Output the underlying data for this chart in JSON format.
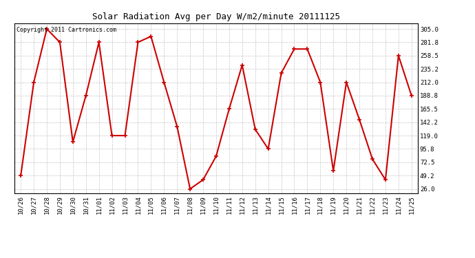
{
  "title": "Solar Radiation Avg per Day W/m2/minute 20111125",
  "copyright": "Copyright 2011 Cartronics.com",
  "x_labels": [
    "10/26",
    "10/27",
    "10/28",
    "10/29",
    "10/30",
    "10/31",
    "11/01",
    "11/02",
    "11/03",
    "11/04",
    "11/05",
    "11/06",
    "11/07",
    "11/08",
    "11/09",
    "11/10",
    "11/11",
    "11/12",
    "11/13",
    "11/14",
    "11/15",
    "11/16",
    "11/17",
    "11/18",
    "11/19",
    "11/20",
    "11/21",
    "11/22",
    "11/23",
    "11/24",
    "11/25"
  ],
  "y_values": [
    49.2,
    212.0,
    305.0,
    281.8,
    108.0,
    188.8,
    281.8,
    119.0,
    119.0,
    281.8,
    292.0,
    212.0,
    135.0,
    26.0,
    42.0,
    83.0,
    165.5,
    242.0,
    130.0,
    95.8,
    228.0,
    270.0,
    270.0,
    212.0,
    57.5,
    212.0,
    147.0,
    78.0,
    42.0,
    258.5,
    188.8
  ],
  "line_color": "#cc0000",
  "marker": "+",
  "marker_size": 4,
  "marker_edge_width": 1.2,
  "line_width": 1.5,
  "yticks": [
    26.0,
    49.2,
    72.5,
    95.8,
    119.0,
    142.2,
    165.5,
    188.8,
    212.0,
    235.2,
    258.5,
    281.8,
    305.0
  ],
  "ylim": [
    18,
    315
  ],
  "bg_color": "#ffffff",
  "grid_color": "#aaaaaa",
  "title_fontsize": 9,
  "tick_fontsize": 6.5,
  "copyright_fontsize": 6
}
